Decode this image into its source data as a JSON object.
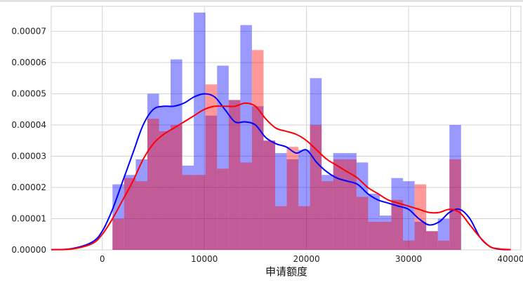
{
  "chart_data": {
    "type": "bar",
    "title": "",
    "xlabel": "申请额度",
    "ylabel": "",
    "xlim": [
      -5000,
      41000
    ],
    "ylim": [
      0,
      7.8e-05
    ],
    "grid": true,
    "legend": "none",
    "x_ticks": [
      0,
      10000,
      20000,
      30000,
      40000
    ],
    "x_tick_labels": [
      "0",
      "10000",
      "20000",
      "30000",
      "40000"
    ],
    "y_ticks": [
      0,
      1e-05,
      2e-05,
      3e-05,
      4e-05,
      5e-05,
      6e-05,
      7e-05
    ],
    "y_tick_labels": [
      "0.00000",
      "0.00001",
      "0.00002",
      "0.00003",
      "0.00004",
      "0.00005",
      "0.00006",
      "0.00007"
    ],
    "colors": {
      "blue": "#0000ff",
      "red": "#ff0000"
    },
    "series": [
      {
        "kind": "histogram",
        "color": "#0000ff",
        "bins": [
          1000,
          2138,
          3276,
          4414,
          5552,
          6690,
          7828,
          8966,
          10104,
          11242,
          12380,
          13518,
          14656,
          15794,
          16932,
          18070,
          19208,
          20346,
          21484,
          22622,
          23760,
          24898,
          26036,
          27174,
          28312,
          29450,
          30588,
          31726,
          32864,
          34002,
          35140
        ],
        "values": [
          2.1e-05,
          2.4e-05,
          2.9e-05,
          5e-05,
          4.6e-05,
          6.1e-05,
          2.7e-05,
          7.6e-05,
          4.3e-05,
          5.9e-05,
          4.8e-05,
          7.2e-05,
          4.6e-05,
          3.5e-05,
          3.1e-05,
          2.9e-05,
          3.2e-05,
          5.5e-05,
          2.4e-05,
          3.1e-05,
          3.1e-05,
          2.8e-05,
          1.8e-05,
          1.1e-05,
          2.3e-05,
          2.2e-05,
          9e-06,
          6e-06,
          1e-05,
          4e-05
        ]
      },
      {
        "kind": "histogram",
        "color": "#ff0000",
        "bins": [
          1000,
          2138,
          3276,
          4414,
          5552,
          6690,
          7828,
          8966,
          10104,
          11242,
          12380,
          13518,
          14656,
          15794,
          16932,
          18070,
          19208,
          20346,
          21484,
          22622,
          23760,
          24898,
          26036,
          27174,
          28312,
          29450,
          30588,
          31726,
          32864,
          34002,
          35140
        ],
        "values": [
          1e-05,
          2.3e-05,
          2.2e-05,
          4.2e-05,
          3.8e-05,
          4e-05,
          2.4e-05,
          2.4e-05,
          5.3e-05,
          2.6e-05,
          4.8e-05,
          2.8e-05,
          6.4e-05,
          3.5e-05,
          1.4e-05,
          3.3e-05,
          1.4e-05,
          4e-05,
          2.2e-05,
          2.9e-05,
          2.9e-05,
          1.7e-05,
          9e-06,
          9e-06,
          1.6e-05,
          3e-06,
          2.1e-05,
          6e-06,
          3e-06,
          2.9e-05
        ]
      },
      {
        "kind": "kde",
        "color": "#0000ff",
        "x": [
          -5000,
          -3000,
          -1000,
          0,
          1000,
          2000,
          3000,
          4000,
          5000,
          6000,
          7000,
          8000,
          9000,
          10000,
          11000,
          12000,
          13000,
          14000,
          15000,
          16000,
          17000,
          18000,
          19000,
          20000,
          21000,
          22000,
          23000,
          24000,
          25000,
          26000,
          27000,
          28000,
          29000,
          30000,
          31000,
          32000,
          33000,
          34000,
          35000,
          36000,
          37000,
          38000,
          39000,
          40000
        ],
        "y": [
          1e-07,
          4e-07,
          2.5e-06,
          6e-06,
          1.3e-05,
          2.2e-05,
          3.1e-05,
          4e-05,
          4.5e-05,
          4.6e-05,
          4.6e-05,
          4.7e-05,
          4.9e-05,
          5e-05,
          4.9e-05,
          4.5e-05,
          4.1e-05,
          4.1e-05,
          4e-05,
          3.6e-05,
          3.4e-05,
          3.3e-05,
          3.1e-05,
          3.2e-05,
          2.8e-05,
          2.5e-05,
          2.3e-05,
          2.2e-05,
          2.1e-05,
          1.8e-05,
          1.6e-05,
          1.5e-05,
          1.4e-05,
          1.3e-05,
          1e-05,
          8e-06,
          9e-06,
          1.2e-05,
          1.3e-05,
          1e-05,
          4e-06,
          1e-06,
          2e-07,
          1e-07
        ]
      },
      {
        "kind": "kde",
        "color": "#ff0000",
        "x": [
          -5000,
          -3000,
          -1000,
          0,
          1000,
          2000,
          3000,
          4000,
          5000,
          6000,
          7000,
          8000,
          9000,
          10000,
          11000,
          12000,
          13000,
          14000,
          15000,
          16000,
          17000,
          18000,
          19000,
          20000,
          21000,
          22000,
          23000,
          24000,
          25000,
          26000,
          27000,
          28000,
          29000,
          30000,
          31000,
          32000,
          33000,
          34000,
          35000,
          36000,
          37000,
          38000,
          39000,
          40000
        ],
        "y": [
          1e-07,
          3e-07,
          2e-06,
          5e-06,
          1e-05,
          1.6e-05,
          2.2e-05,
          2.9e-05,
          3.4e-05,
          3.7e-05,
          3.9e-05,
          4.1e-05,
          4.3e-05,
          4.5e-05,
          4.6e-05,
          4.6e-05,
          4.6e-05,
          4.7e-05,
          4.6e-05,
          4.2e-05,
          3.9e-05,
          3.8e-05,
          3.7e-05,
          3.5e-05,
          3.2e-05,
          2.9e-05,
          2.7e-05,
          2.5e-05,
          2.3e-05,
          2e-05,
          1.8e-05,
          1.6e-05,
          1.5e-05,
          1.4e-05,
          1.3e-05,
          1.2e-05,
          1.2e-05,
          1.3e-05,
          1.2e-05,
          8e-06,
          4e-06,
          1e-06,
          3e-07,
          1e-07
        ]
      }
    ]
  }
}
